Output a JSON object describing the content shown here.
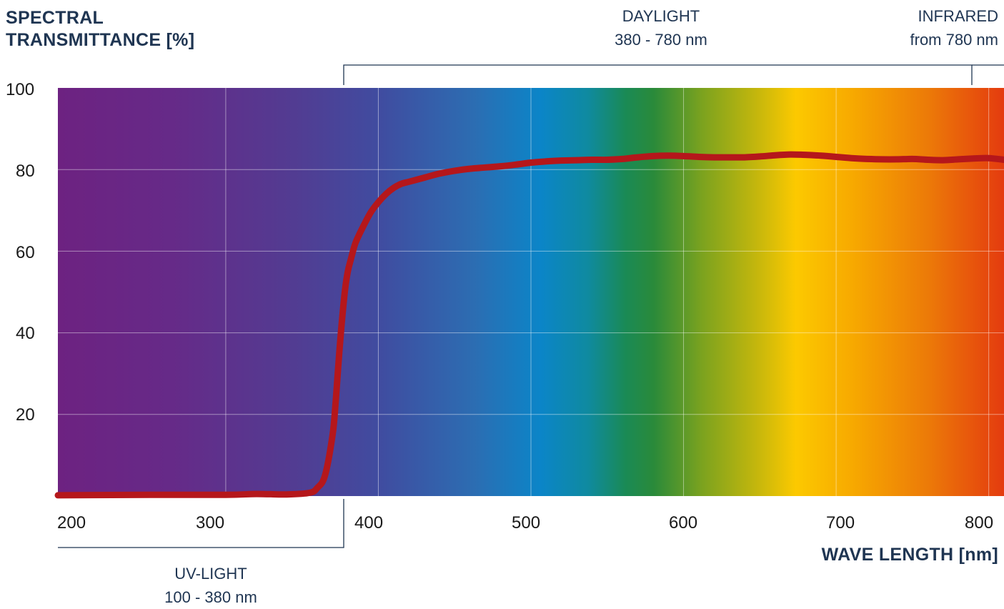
{
  "chart_data": {
    "type": "line",
    "title": "",
    "ylabel_line1": "SPECTRAL",
    "ylabel_line2": "TRANSMITTANCE [%]",
    "xlabel": "WAVE LENGTH [nm]",
    "xlim": [
      190,
      810
    ],
    "ylim": [
      0,
      100
    ],
    "x_ticks": [
      "200",
      "300",
      "400",
      "500",
      "600",
      "700",
      "800"
    ],
    "y_ticks": [
      "100",
      "80",
      "60",
      "40",
      "20"
    ],
    "grid": true,
    "background": "visible light spectrum gradient (violet to red)",
    "line_color": "#b5171b",
    "bands": {
      "uv": {
        "name": "UV-LIGHT",
        "range": "100 - 380 nm"
      },
      "daylight": {
        "name": "DAYLIGHT",
        "range": "380 - 780 nm"
      },
      "infrared": {
        "name": "INFRARED",
        "range": "from 780 nm"
      }
    },
    "series": [
      {
        "x": [
          190,
          250,
          300,
          320,
          340,
          355,
          360,
          365,
          370,
          372,
          375,
          378,
          380,
          382,
          385,
          390,
          395,
          400,
          405,
          410,
          415,
          420,
          430,
          440,
          450,
          460,
          470,
          480,
          490,
          500,
          510,
          520,
          530,
          540,
          550,
          560,
          570,
          580,
          590,
          600,
          610,
          620,
          630,
          640,
          650,
          660,
          670,
          680,
          690,
          700,
          710,
          720,
          730,
          740,
          750,
          760,
          770,
          780,
          790,
          800,
          810
        ],
        "y": [
          0.2,
          0.3,
          0.3,
          0.5,
          0.4,
          0.8,
          2,
          5,
          15,
          23,
          38,
          50,
          55,
          58,
          62,
          66,
          69.5,
          72,
          74,
          75.5,
          76.5,
          77,
          78,
          79,
          79.7,
          80.2,
          80.5,
          80.8,
          81.2,
          81.7,
          82,
          82.2,
          82.3,
          82.4,
          82.4,
          82.6,
          83,
          83.3,
          83.4,
          83.3,
          83.1,
          83,
          83,
          83,
          83.2,
          83.5,
          83.7,
          83.6,
          83.4,
          83.1,
          82.8,
          82.6,
          82.5,
          82.5,
          82.6,
          82.4,
          82.3,
          82.5,
          82.7,
          82.8,
          82.4
        ]
      }
    ]
  }
}
